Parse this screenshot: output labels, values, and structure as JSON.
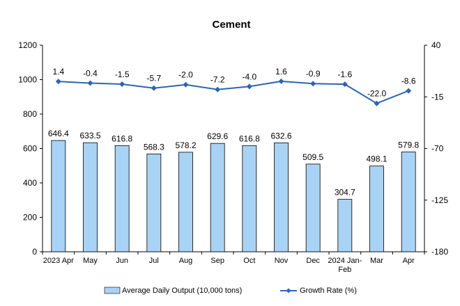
{
  "chart_data": {
    "type": "bar+line",
    "title": "Cement",
    "categories": [
      "2023 Apr",
      "May",
      "Jun",
      "Jul",
      "Aug",
      "Sep",
      "Oct",
      "Nov",
      "Dec",
      "2024 Jan-Feb",
      "Mar",
      "Apr"
    ],
    "bar_series": {
      "name": "Average Daily Output (10,000 tons)",
      "values": [
        646.4,
        633.5,
        616.8,
        568.3,
        578.2,
        629.6,
        616.8,
        632.6,
        509.5,
        304.7,
        498.1,
        579.8
      ],
      "color": "#a9d3f5",
      "axis": "left"
    },
    "line_series": {
      "name": "Growth Rate (%)",
      "values": [
        1.4,
        -0.4,
        -1.5,
        -5.7,
        -2.0,
        -7.2,
        -4.0,
        1.6,
        -0.9,
        -1.6,
        -22.0,
        -8.6
      ],
      "color": "#2e64b0",
      "axis": "right"
    },
    "y_left": {
      "min": 0,
      "max": 1200,
      "ticks": [
        0,
        200,
        400,
        600,
        800,
        1000,
        1200
      ]
    },
    "y_right": {
      "min": -180,
      "max": 40,
      "ticks": [
        -180,
        -125,
        -70,
        -15,
        40
      ]
    },
    "legend_position": "bottom",
    "grid": false
  }
}
